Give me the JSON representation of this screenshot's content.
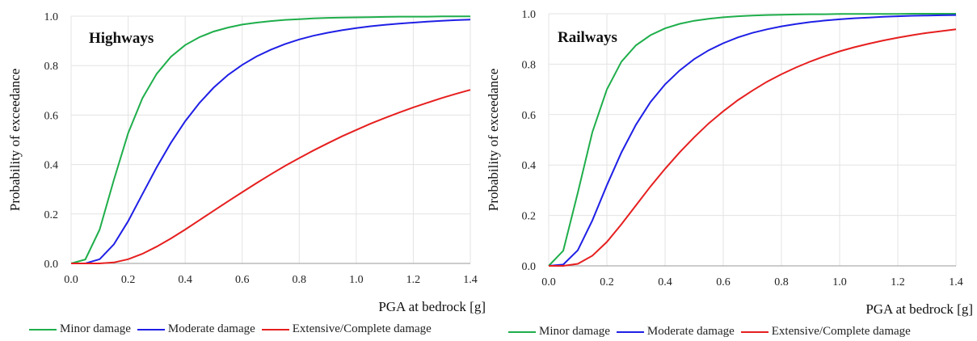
{
  "chart_data": [
    {
      "type": "line",
      "title": "Highways",
      "xlabel": "PGA at bedrock  [g]",
      "ylabel": "Probability  of exceedance",
      "xlim": [
        0,
        1.4
      ],
      "ylim": [
        0,
        1.0
      ],
      "xticks": [
        "0.0",
        "0.2",
        "0.4",
        "0.6",
        "0.8",
        "1.0",
        "1.2",
        "1.4"
      ],
      "yticks": [
        "0.0",
        "0.2",
        "0.4",
        "0.6",
        "0.8",
        "1.0"
      ],
      "grid": true,
      "legend_position": "bottom",
      "x": [
        0.0,
        0.05,
        0.1,
        0.15,
        0.2,
        0.25,
        0.3,
        0.35,
        0.4,
        0.45,
        0.5,
        0.55,
        0.6,
        0.65,
        0.7,
        0.75,
        0.8,
        0.85,
        0.9,
        0.95,
        1.0,
        1.05,
        1.1,
        1.15,
        1.2,
        1.25,
        1.3,
        1.35,
        1.4
      ],
      "series": [
        {
          "name": "Minor damage",
          "color": "#1fae4b",
          "values": [
            0.0,
            0.016,
            0.137,
            0.338,
            0.527,
            0.668,
            0.767,
            0.836,
            0.883,
            0.915,
            0.938,
            0.954,
            0.966,
            0.974,
            0.98,
            0.985,
            0.988,
            0.991,
            0.993,
            0.994,
            0.995,
            0.996,
            0.997,
            0.998,
            0.998,
            0.998,
            0.999,
            0.999,
            0.999
          ]
        },
        {
          "name": "Moderate damage",
          "color": "#1f1fe6",
          "values": [
            0.0,
            0.0,
            0.017,
            0.077,
            0.171,
            0.28,
            0.389,
            0.488,
            0.575,
            0.649,
            0.711,
            0.762,
            0.803,
            0.837,
            0.864,
            0.887,
            0.906,
            0.921,
            0.933,
            0.943,
            0.952,
            0.959,
            0.965,
            0.97,
            0.974,
            0.978,
            0.981,
            0.984,
            0.986
          ]
        },
        {
          "name": "Extensive/Complete damage",
          "color": "#e61f1f",
          "values": [
            0.0,
            0.0,
            0.0,
            0.004,
            0.017,
            0.039,
            0.068,
            0.101,
            0.137,
            0.175,
            0.213,
            0.251,
            0.288,
            0.325,
            0.36,
            0.394,
            0.426,
            0.457,
            0.486,
            0.514,
            0.54,
            0.565,
            0.588,
            0.61,
            0.631,
            0.65,
            0.669,
            0.686,
            0.702
          ]
        }
      ]
    },
    {
      "type": "line",
      "title": "Railways",
      "xlabel": "PGA at bedrock  [g]",
      "ylabel": "Probability  of exceedance",
      "xlim": [
        0,
        1.4
      ],
      "ylim": [
        0,
        1.0
      ],
      "xticks": [
        "0.0",
        "0.2",
        "0.4",
        "0.6",
        "0.8",
        "1.0",
        "1.2",
        "1.4"
      ],
      "yticks": [
        "0.0",
        "0.2",
        "0.4",
        "0.6",
        "0.8",
        "1.0"
      ],
      "grid": true,
      "legend_position": "bottom",
      "x": [
        0.0,
        0.05,
        0.1,
        0.15,
        0.2,
        0.25,
        0.3,
        0.35,
        0.4,
        0.45,
        0.5,
        0.55,
        0.6,
        0.65,
        0.7,
        0.75,
        0.8,
        0.85,
        0.9,
        0.95,
        1.0,
        1.05,
        1.1,
        1.15,
        1.2,
        1.25,
        1.3,
        1.35,
        1.4
      ],
      "series": [
        {
          "name": "Minor damage",
          "color": "#1fae4b",
          "values": [
            0.0,
            0.06,
            0.29,
            0.53,
            0.7,
            0.81,
            0.875,
            0.915,
            0.942,
            0.96,
            0.972,
            0.98,
            0.986,
            0.99,
            0.993,
            0.995,
            0.996,
            0.997,
            0.998,
            0.998,
            0.999,
            0.999,
            0.999,
            0.999,
            0.999,
            1.0,
            1.0,
            1.0,
            1.0
          ]
        },
        {
          "name": "Moderate damage",
          "color": "#1f1fe6",
          "values": [
            0.0,
            0.005,
            0.062,
            0.18,
            0.32,
            0.45,
            0.56,
            0.65,
            0.72,
            0.775,
            0.82,
            0.855,
            0.883,
            0.906,
            0.924,
            0.938,
            0.95,
            0.959,
            0.967,
            0.973,
            0.978,
            0.982,
            0.985,
            0.988,
            0.99,
            0.992,
            0.993,
            0.994,
            0.995
          ]
        },
        {
          "name": "Extensive/Complete damage",
          "color": "#e61f1f",
          "values": [
            0.0,
            0.0,
            0.008,
            0.04,
            0.095,
            0.165,
            0.24,
            0.315,
            0.385,
            0.45,
            0.51,
            0.565,
            0.613,
            0.657,
            0.695,
            0.73,
            0.76,
            0.787,
            0.811,
            0.832,
            0.851,
            0.867,
            0.881,
            0.894,
            0.905,
            0.915,
            0.924,
            0.931,
            0.938
          ]
        }
      ]
    }
  ]
}
